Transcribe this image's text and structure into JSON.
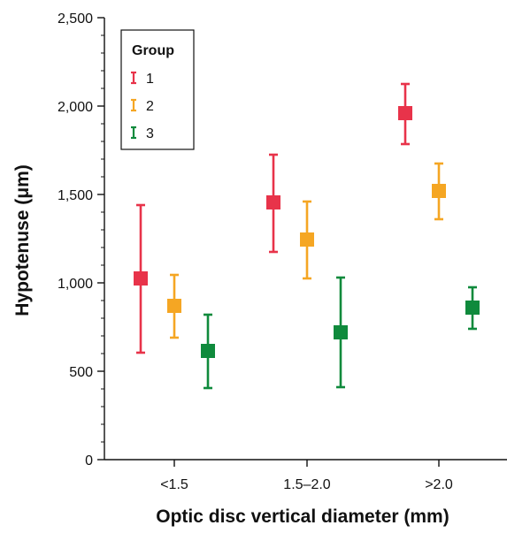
{
  "chart_data": {
    "type": "scatter",
    "subtype": "error-bar",
    "xlabel": "Optic disc vertical diameter (mm)",
    "ylabel": "Hypotenuse (μm)",
    "categories": [
      "<1.5",
      "1.5–2.0",
      ">2.0"
    ],
    "ylim": [
      0,
      2500
    ],
    "yticks": [
      0,
      500,
      1000,
      1500,
      2000,
      2500
    ],
    "ytick_labels": [
      "0",
      "500",
      "1,000",
      "1,500",
      "2,000",
      "2,500"
    ],
    "grid": false,
    "legend": {
      "title": "Group",
      "placement": "top-left"
    },
    "series": [
      {
        "name": "1",
        "color": "#e8334a",
        "mean": [
          1025,
          1455,
          1960
        ],
        "lower": [
          605,
          1175,
          1785
        ],
        "upper": [
          1440,
          1725,
          2125
        ]
      },
      {
        "name": "2",
        "color": "#f5a623",
        "mean": [
          870,
          1245,
          1520
        ],
        "lower": [
          690,
          1025,
          1360
        ],
        "upper": [
          1045,
          1460,
          1675
        ]
      },
      {
        "name": "3",
        "color": "#0f8a3c",
        "mean": [
          615,
          720,
          860
        ],
        "lower": [
          405,
          410,
          740
        ],
        "upper": [
          820,
          1030,
          975
        ]
      }
    ]
  }
}
